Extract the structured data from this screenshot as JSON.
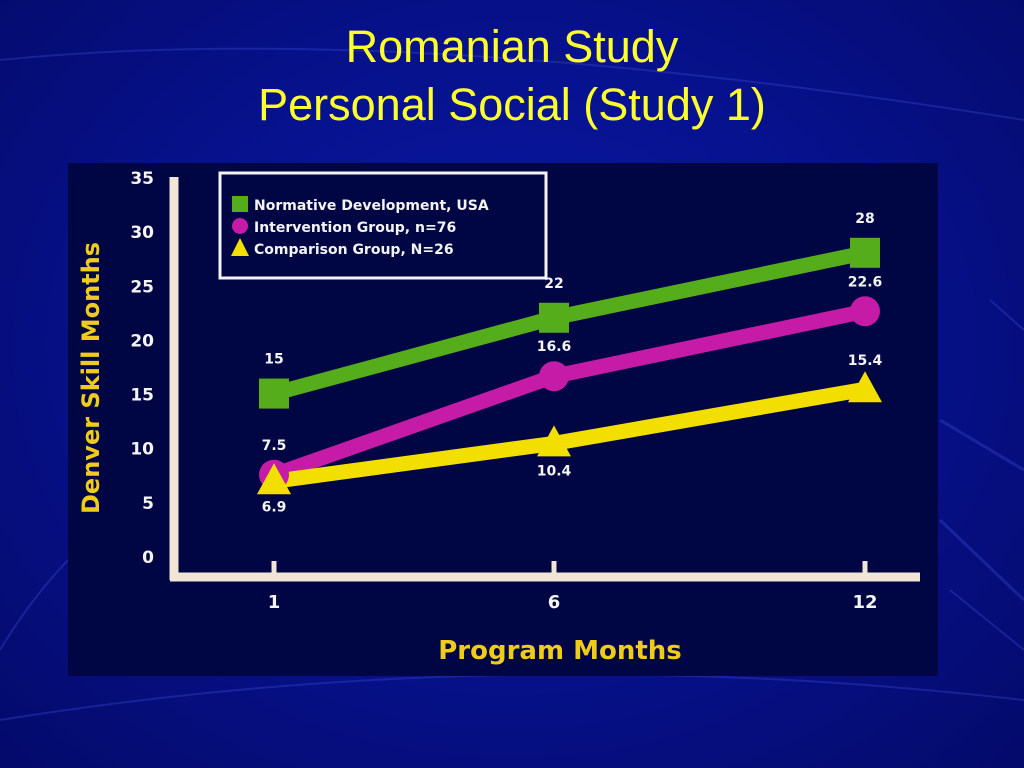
{
  "slide": {
    "title_line1": "Romanian Study",
    "title_line2": "Personal Social (Study 1)",
    "title_color": "#ffff2e",
    "background_color": "#071290",
    "panel_color": "#000543"
  },
  "chart_data": {
    "type": "line",
    "title": "",
    "xlabel": "Program Months",
    "ylabel": "Denver Skill Months",
    "categories": [
      "1",
      "6",
      "12"
    ],
    "ylim": [
      0,
      35
    ],
    "yticks": [
      "0",
      "5",
      "10",
      "15",
      "20",
      "25",
      "30",
      "35"
    ],
    "grid": false,
    "legend_position": "top-left",
    "series": [
      {
        "name": "Normative Development, USA",
        "values": [
          15,
          22,
          28
        ],
        "labels": [
          "15",
          "22",
          "28"
        ],
        "color": "#56ad1c",
        "marker": "square"
      },
      {
        "name": "Intervention Group, n=76",
        "values": [
          7.5,
          16.6,
          22.6
        ],
        "labels": [
          "7.5",
          "16.6",
          "22.6"
        ],
        "color": "#c51ba6",
        "marker": "circle"
      },
      {
        "name": "Comparison Group, N=26",
        "values": [
          6.9,
          10.4,
          15.4
        ],
        "labels": [
          "6.9",
          "10.4",
          "15.4"
        ],
        "color": "#f2df00",
        "marker": "triangle"
      }
    ]
  }
}
